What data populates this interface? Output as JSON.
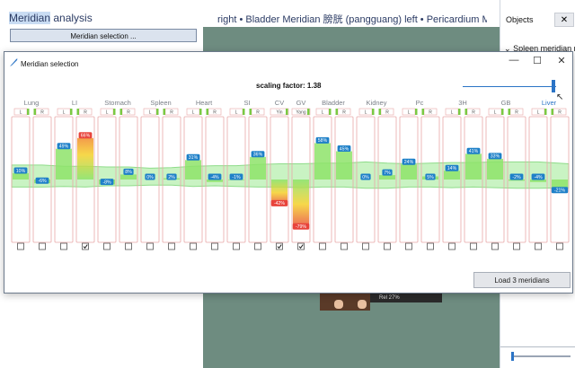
{
  "app": {
    "title_highlight": "Meridian",
    "title_rest": " analysis",
    "selection_button": "Meridian selection ...",
    "top_text": "right • Bladder Meridian 膀胱 (pangguang) left • Pericardium Mer"
  },
  "right_panel": {
    "objects_label": "Objects",
    "close_glyph": "✕",
    "tree_item": "Spleen meridian r"
  },
  "viewer": {
    "status_text": "Rel 27%"
  },
  "dialog": {
    "title": "Meridian selection",
    "minimize": "—",
    "maximize": "☐",
    "close": "✕",
    "scaling_label": "scaling factor: 1.38",
    "scaling_value": 1.38,
    "load_button": "Load 3 meridians"
  },
  "colors": {
    "accent": "#2b74c6",
    "band_fill": "#c9f3c3",
    "band_stroke": "#8fdc8a",
    "positive_bar": "#8ee36a",
    "negative_red": "#e8433b",
    "column_border": "#e8a7a7",
    "badge_blue": "#1e80c8",
    "badge_red": "#e8433b"
  },
  "chart_data": {
    "type": "bar",
    "groups": [
      {
        "name": "Lung",
        "sides": [
          "L",
          "R"
        ],
        "values": [
          10,
          -6
        ],
        "checked": [
          false,
          false
        ]
      },
      {
        "name": "LI",
        "sides": [
          "L",
          "R"
        ],
        "values": [
          49,
          66
        ],
        "checked": [
          false,
          true
        ]
      },
      {
        "name": "Stomach",
        "sides": [
          "L",
          "R"
        ],
        "values": [
          -8,
          8
        ],
        "checked": [
          false,
          false
        ]
      },
      {
        "name": "Spleen",
        "sides": [
          "L",
          "R"
        ],
        "values": [
          0,
          2
        ],
        "checked": [
          false,
          false
        ]
      },
      {
        "name": "Heart",
        "sides": [
          "L",
          "R"
        ],
        "values": [
          31,
          -4
        ],
        "checked": [
          false,
          false
        ]
      },
      {
        "name": "SI",
        "sides": [
          "L",
          "R"
        ],
        "values": [
          -1,
          36
        ],
        "checked": [
          false,
          false
        ]
      },
      {
        "name": "CV",
        "sides": [
          "Yin"
        ],
        "values": [
          -42
        ],
        "checked": [
          true
        ]
      },
      {
        "name": "GV",
        "sides": [
          "Yang"
        ],
        "values": [
          -79
        ],
        "checked": [
          true
        ]
      },
      {
        "name": "Bladder",
        "sides": [
          "L",
          "R"
        ],
        "values": [
          58,
          45
        ],
        "checked": [
          false,
          false
        ]
      },
      {
        "name": "Kidney",
        "sides": [
          "L",
          "R"
        ],
        "values": [
          0,
          7
        ],
        "checked": [
          false,
          false
        ]
      },
      {
        "name": "Pc",
        "sides": [
          "L",
          "R"
        ],
        "values": [
          24,
          5
        ],
        "checked": [
          false,
          false
        ]
      },
      {
        "name": "3H",
        "sides": [
          "L",
          "R"
        ],
        "values": [
          14,
          41
        ],
        "checked": [
          false,
          false
        ]
      },
      {
        "name": "GB",
        "sides": [
          "L",
          "R"
        ],
        "values": [
          33,
          -2
        ],
        "checked": [
          false,
          false
        ]
      },
      {
        "name": "Liver",
        "sides": [
          "L",
          "R"
        ],
        "values": [
          -4,
          -21
        ],
        "checked": [
          false,
          false
        ]
      }
    ],
    "labels": {
      "Lung": [
        "10%",
        "-6%"
      ],
      "LI": [
        "49%",
        "66%"
      ],
      "Stomach": [
        "-8%",
        "8%"
      ],
      "Spleen": [
        "0%",
        "2%"
      ],
      "Heart": [
        "31%",
        "-4%"
      ],
      "SI": [
        "-1%",
        "36%"
      ],
      "CV": [
        "-42%"
      ],
      "GV": [
        "-79%"
      ],
      "Bladder": [
        "58%",
        "45%"
      ],
      "Kidney": [
        "0%",
        "7%"
      ],
      "Pc": [
        "24%",
        "5%"
      ],
      "3H": [
        "14%",
        "41%"
      ],
      "GB": [
        "33%",
        "-2%"
      ],
      "Liver": [
        "-4%",
        "-21%"
      ]
    },
    "highlighted_group": "Liver",
    "band": {
      "upper": [
        23,
        23,
        21,
        21,
        20,
        20,
        18,
        19,
        21,
        22,
        22,
        24,
        25,
        25,
        26,
        26,
        28,
        26,
        25,
        26,
        27,
        27,
        28,
        28,
        28,
        25
      ],
      "lower": [
        -12,
        -12,
        -11,
        -12,
        -10,
        -10,
        -9,
        -9,
        -11,
        -10,
        -11,
        -12,
        -12,
        -13,
        -12,
        -12,
        -14,
        -14,
        -12,
        -12,
        -13,
        -12,
        -13,
        -14,
        -14,
        -13
      ]
    },
    "ylim": [
      -100,
      100
    ]
  }
}
